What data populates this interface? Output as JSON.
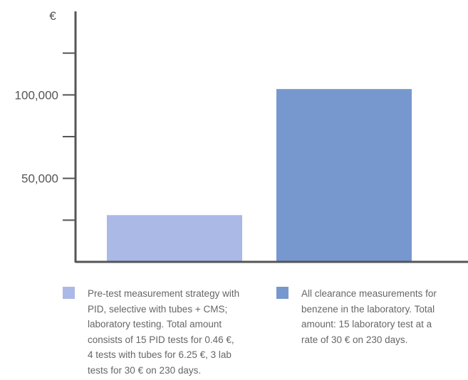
{
  "chart_data": {
    "type": "bar",
    "categories": [
      "Pre-test measurement strategy with PID, selective with tubes + CMS; laboratory testing. Total amount consists of 15 PID tests for 0.46 €, 4 tests with tubes for 6.25 €, 3 lab tests for 30 €on 230 days.",
      "All clearance measurements for benzene in the laboratory. Total amount: 15 laboratory test at a rate of 30 € on 230 days."
    ],
    "values": [
      28000,
      103500
    ],
    "colors": [
      "#aab9e6",
      "#7798cf"
    ],
    "ylabel": "€",
    "ylim": [
      0,
      150000
    ],
    "y_tick_step": 25000,
    "y_tick_labels": [
      {
        "value": 50000,
        "label": "50,000"
      },
      {
        "value": 100000,
        "label": "100,000"
      }
    ],
    "axis_color": "#555555",
    "grid": false,
    "legend_position": "bottom"
  },
  "legend": [
    {
      "color": "#aab9e6",
      "lines": [
        "Pre-test measurement strategy with",
        "PID,  selective with tubes + CMS;",
        "laboratory testing. Total amount",
        "consists of 15 PID tests for 0.46 €,",
        "4 tests with tubes for 6.25 €, 3 lab",
        "tests for 30 € on 230 days."
      ]
    },
    {
      "color": "#7798cf",
      "lines": [
        "All clearance measurements for",
        "benzene in the laboratory. Total",
        "amount: 15 laboratory test at a",
        "rate of 30 € on 230 days."
      ]
    }
  ]
}
